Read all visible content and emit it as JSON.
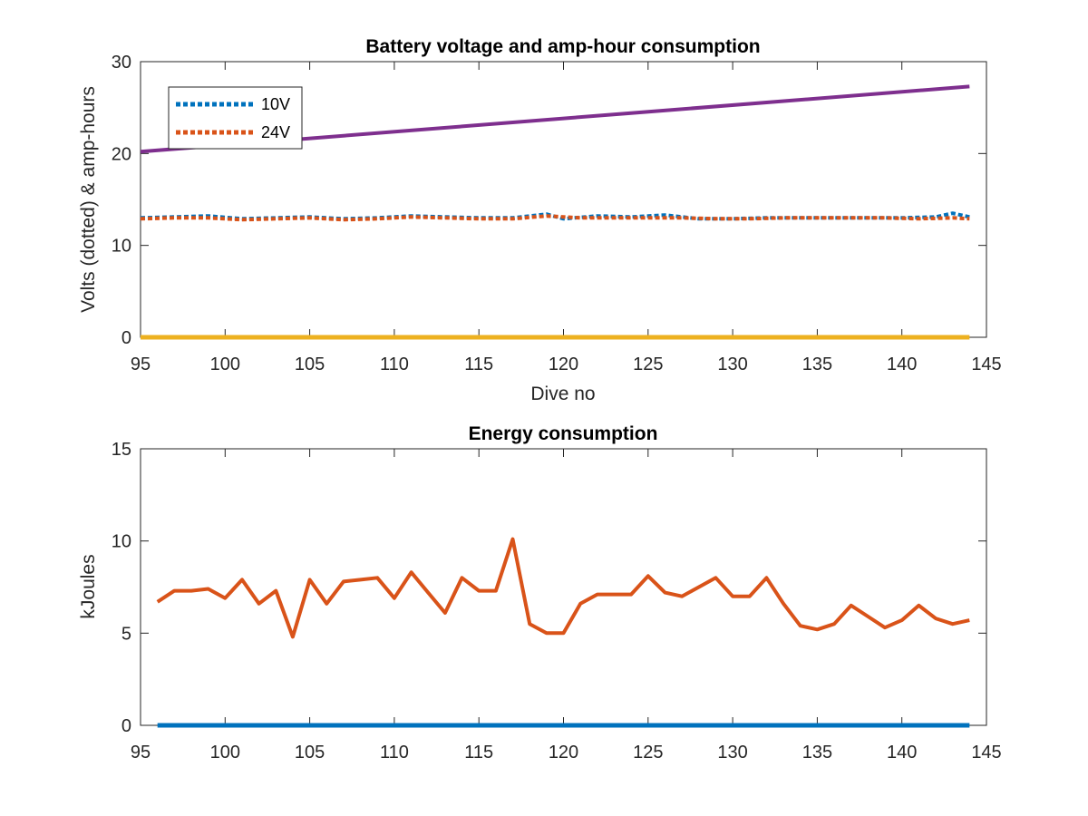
{
  "chart_data": [
    {
      "type": "line",
      "title": "Battery voltage and amp-hour consumption",
      "xlabel": "Dive no",
      "ylabel": "Volts (dotted) & amp-hours",
      "xlim": [
        95,
        145
      ],
      "ylim": [
        0,
        30
      ],
      "xticks": [
        95,
        100,
        105,
        110,
        115,
        120,
        125,
        130,
        135,
        140,
        145
      ],
      "yticks": [
        0,
        10,
        20,
        30
      ],
      "grid": false,
      "legend_position": "top-left",
      "series": [
        {
          "name": "10V",
          "style": "dotted",
          "color": "#0072BD",
          "x": [
            95,
            97,
            99,
            101,
            103,
            105,
            107,
            109,
            111,
            113,
            115,
            117,
            119,
            120,
            122,
            124,
            126,
            128,
            130,
            132,
            134,
            136,
            138,
            140,
            142,
            143,
            144
          ],
          "y": [
            13.0,
            13.1,
            13.2,
            12.9,
            13.0,
            13.1,
            12.9,
            13.0,
            13.2,
            13.1,
            13.0,
            13.0,
            13.4,
            12.9,
            13.2,
            13.1,
            13.3,
            12.9,
            12.9,
            13.0,
            13.0,
            13.0,
            13.0,
            13.0,
            13.1,
            13.5,
            13.1
          ]
        },
        {
          "name": "24V",
          "style": "dotted",
          "color": "#D95319",
          "x": [
            95,
            97,
            99,
            101,
            103,
            105,
            107,
            109,
            111,
            113,
            115,
            117,
            119,
            121,
            123,
            125,
            127,
            129,
            131,
            133,
            135,
            137,
            139,
            141,
            143,
            144
          ],
          "y": [
            12.9,
            13.0,
            13.0,
            12.8,
            12.9,
            13.0,
            12.8,
            12.9,
            13.1,
            13.0,
            12.9,
            12.9,
            13.2,
            13.0,
            13.0,
            13.0,
            13.0,
            12.9,
            12.9,
            13.0,
            13.0,
            13.0,
            13.0,
            12.9,
            13.0,
            12.9
          ]
        },
        {
          "style": "solid",
          "color": "#7E2F8E",
          "x": [
            95,
            144
          ],
          "y": [
            20.2,
            27.3
          ]
        },
        {
          "style": "solid",
          "color": "#EDB120",
          "x": [
            95,
            144
          ],
          "y": [
            0,
            0
          ]
        }
      ]
    },
    {
      "type": "line",
      "title": "Energy consumption",
      "xlabel": "",
      "ylabel": "kJoules",
      "xlim": [
        95,
        145
      ],
      "ylim": [
        0,
        15
      ],
      "xticks": [
        95,
        100,
        105,
        110,
        115,
        120,
        125,
        130,
        135,
        140,
        145
      ],
      "yticks": [
        0,
        5,
        10,
        15
      ],
      "grid": false,
      "series": [
        {
          "style": "solid",
          "color": "#D95319",
          "x": [
            96,
            97,
            98,
            99,
            100,
            101,
            102,
            103,
            104,
            105,
            106,
            107,
            108,
            109,
            110,
            111,
            112,
            113,
            114,
            115,
            116,
            117,
            118,
            119,
            120,
            121,
            122,
            123,
            124,
            125,
            126,
            127,
            128,
            129,
            130,
            131,
            132,
            133,
            134,
            135,
            136,
            137,
            138,
            139,
            140,
            141,
            142,
            143,
            144
          ],
          "y": [
            6.7,
            7.3,
            7.3,
            7.4,
            6.9,
            7.9,
            6.6,
            7.3,
            4.8,
            7.9,
            6.6,
            7.8,
            7.9,
            8.0,
            6.9,
            8.3,
            7.2,
            6.1,
            8.0,
            7.3,
            7.3,
            10.1,
            5.5,
            5.0,
            5.0,
            6.6,
            7.1,
            7.1,
            7.1,
            8.1,
            7.2,
            7.0,
            7.5,
            8.0,
            7.0,
            7.0,
            8.0,
            6.6,
            5.4,
            5.2,
            5.5,
            6.5,
            5.9,
            5.3,
            5.7,
            6.5,
            5.8,
            5.5,
            5.7
          ]
        },
        {
          "style": "solid",
          "color": "#0072BD",
          "x": [
            96,
            144
          ],
          "y": [
            0,
            0
          ]
        }
      ]
    }
  ]
}
